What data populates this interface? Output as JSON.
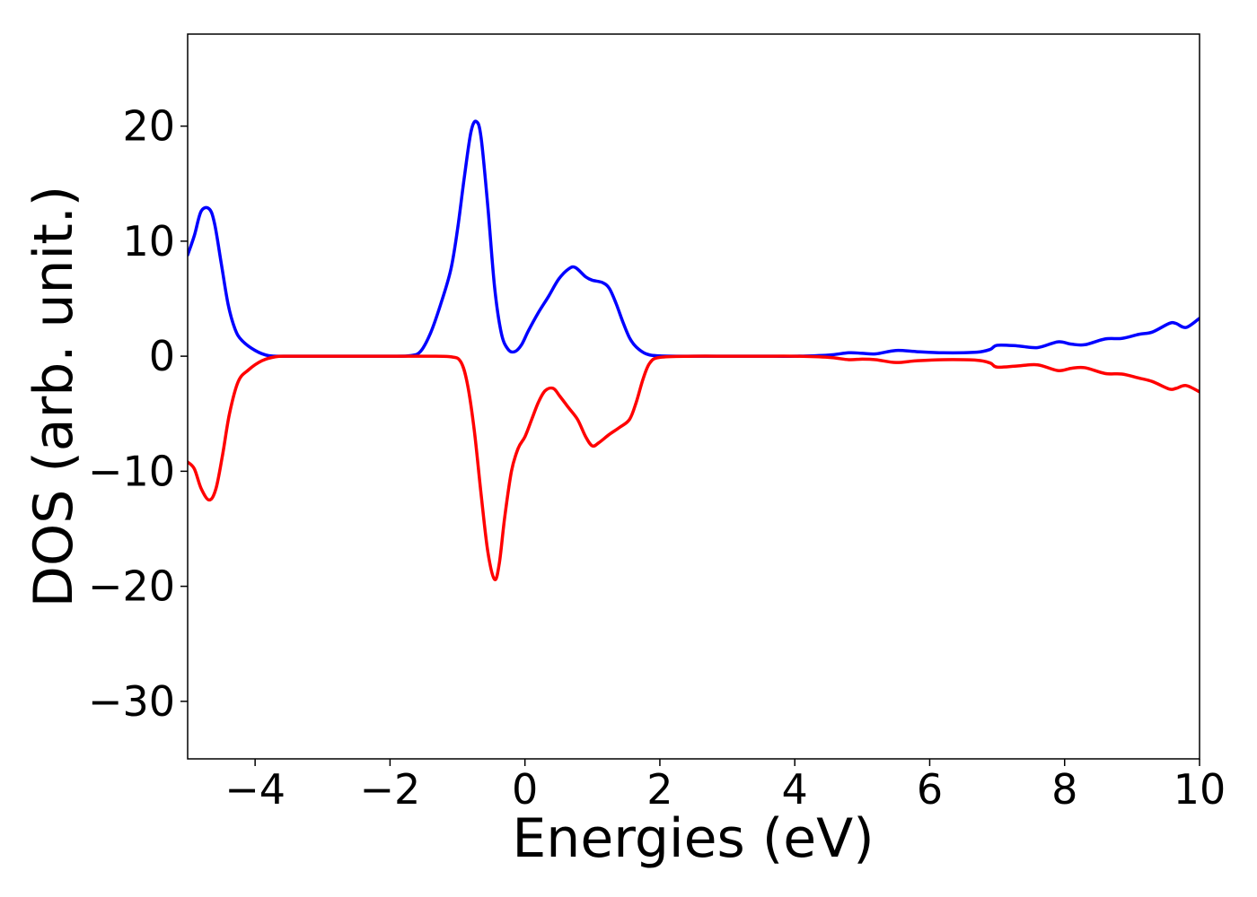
{
  "chart_data": {
    "type": "line",
    "title": "",
    "xlabel": "Energies (eV)",
    "ylabel": "DOS (arb. unit.)",
    "xlim": [
      -5,
      10
    ],
    "ylim": [
      -35,
      28
    ],
    "grid": false,
    "legend": "none",
    "x_ticks": [
      {
        "value": -4,
        "label": "−4"
      },
      {
        "value": -2,
        "label": "−2"
      },
      {
        "value": 0,
        "label": "0"
      },
      {
        "value": 2,
        "label": "2"
      },
      {
        "value": 4,
        "label": "4"
      },
      {
        "value": 6,
        "label": "6"
      },
      {
        "value": 8,
        "label": "8"
      },
      {
        "value": 10,
        "label": "10"
      }
    ],
    "y_ticks": [
      {
        "value": 20,
        "label": "20"
      },
      {
        "value": 10,
        "label": "10"
      },
      {
        "value": 0,
        "label": "0"
      },
      {
        "value": -10,
        "label": "−10"
      },
      {
        "value": -20,
        "label": "−20"
      },
      {
        "value": -30,
        "label": "−30"
      }
    ],
    "series": [
      {
        "color": "#0000ff",
        "points": [
          [
            -5.0,
            8.8
          ],
          [
            -4.9,
            10.5
          ],
          [
            -4.8,
            12.6
          ],
          [
            -4.68,
            12.8
          ],
          [
            -4.6,
            11.5
          ],
          [
            -4.5,
            8.0
          ],
          [
            -4.4,
            4.5
          ],
          [
            -4.3,
            2.4
          ],
          [
            -4.2,
            1.4
          ],
          [
            -4.0,
            0.5
          ],
          [
            -3.8,
            0.05
          ],
          [
            -3.5,
            0.0
          ],
          [
            -3.0,
            0.0
          ],
          [
            -2.5,
            0.0
          ],
          [
            -2.0,
            0.0
          ],
          [
            -1.7,
            0.05
          ],
          [
            -1.55,
            0.4
          ],
          [
            -1.4,
            2.0
          ],
          [
            -1.25,
            4.5
          ],
          [
            -1.1,
            7.5
          ],
          [
            -1.0,
            11.0
          ],
          [
            -0.9,
            15.5
          ],
          [
            -0.8,
            19.5
          ],
          [
            -0.72,
            20.4
          ],
          [
            -0.65,
            19.0
          ],
          [
            -0.55,
            13.0
          ],
          [
            -0.45,
            6.0
          ],
          [
            -0.35,
            2.0
          ],
          [
            -0.25,
            0.6
          ],
          [
            -0.15,
            0.4
          ],
          [
            -0.05,
            1.0
          ],
          [
            0.05,
            2.2
          ],
          [
            0.2,
            3.8
          ],
          [
            0.35,
            5.2
          ],
          [
            0.5,
            6.7
          ],
          [
            0.65,
            7.6
          ],
          [
            0.75,
            7.7
          ],
          [
            0.9,
            6.9
          ],
          [
            1.0,
            6.6
          ],
          [
            1.15,
            6.4
          ],
          [
            1.25,
            5.9
          ],
          [
            1.35,
            4.6
          ],
          [
            1.45,
            3.0
          ],
          [
            1.55,
            1.6
          ],
          [
            1.65,
            0.8
          ],
          [
            1.8,
            0.2
          ],
          [
            2.0,
            0.03
          ],
          [
            2.5,
            0.0
          ],
          [
            3.0,
            0.0
          ],
          [
            3.5,
            0.0
          ],
          [
            4.0,
            0.0
          ],
          [
            4.5,
            0.1
          ],
          [
            4.8,
            0.3
          ],
          [
            5.0,
            0.25
          ],
          [
            5.2,
            0.2
          ],
          [
            5.5,
            0.5
          ],
          [
            5.8,
            0.4
          ],
          [
            6.2,
            0.3
          ],
          [
            6.7,
            0.35
          ],
          [
            6.9,
            0.6
          ],
          [
            7.0,
            0.95
          ],
          [
            7.3,
            0.9
          ],
          [
            7.6,
            0.75
          ],
          [
            7.9,
            1.25
          ],
          [
            8.1,
            1.05
          ],
          [
            8.3,
            1.0
          ],
          [
            8.6,
            1.5
          ],
          [
            8.85,
            1.55
          ],
          [
            9.1,
            1.9
          ],
          [
            9.3,
            2.1
          ],
          [
            9.55,
            2.85
          ],
          [
            9.65,
            2.85
          ],
          [
            9.8,
            2.5
          ],
          [
            10.0,
            3.3
          ]
        ]
      },
      {
        "color": "#ff0000",
        "points": [
          [
            -5.0,
            -9.2
          ],
          [
            -4.9,
            -9.8
          ],
          [
            -4.8,
            -11.5
          ],
          [
            -4.68,
            -12.5
          ],
          [
            -4.58,
            -11.5
          ],
          [
            -4.48,
            -8.5
          ],
          [
            -4.38,
            -5.0
          ],
          [
            -4.25,
            -2.2
          ],
          [
            -4.1,
            -1.2
          ],
          [
            -3.9,
            -0.4
          ],
          [
            -3.7,
            -0.05
          ],
          [
            -3.5,
            0.0
          ],
          [
            -3.0,
            0.0
          ],
          [
            -2.5,
            0.0
          ],
          [
            -2.0,
            0.0
          ],
          [
            -1.5,
            0.0
          ],
          [
            -1.1,
            -0.05
          ],
          [
            -0.95,
            -0.5
          ],
          [
            -0.85,
            -2.5
          ],
          [
            -0.75,
            -6.5
          ],
          [
            -0.65,
            -12.0
          ],
          [
            -0.55,
            -17.0
          ],
          [
            -0.45,
            -19.4
          ],
          [
            -0.38,
            -18.0
          ],
          [
            -0.3,
            -14.0
          ],
          [
            -0.2,
            -10.0
          ],
          [
            -0.1,
            -8.0
          ],
          [
            0.0,
            -7.0
          ],
          [
            0.1,
            -5.5
          ],
          [
            0.2,
            -4.0
          ],
          [
            0.3,
            -3.0
          ],
          [
            0.42,
            -2.8
          ],
          [
            0.52,
            -3.5
          ],
          [
            0.65,
            -4.5
          ],
          [
            0.78,
            -5.5
          ],
          [
            0.9,
            -7.0
          ],
          [
            1.0,
            -7.8
          ],
          [
            1.1,
            -7.5
          ],
          [
            1.25,
            -6.8
          ],
          [
            1.4,
            -6.2
          ],
          [
            1.55,
            -5.5
          ],
          [
            1.65,
            -4.0
          ],
          [
            1.75,
            -2.0
          ],
          [
            1.85,
            -0.6
          ],
          [
            2.0,
            -0.1
          ],
          [
            2.5,
            0.0
          ],
          [
            3.0,
            0.0
          ],
          [
            3.5,
            0.0
          ],
          [
            4.0,
            0.0
          ],
          [
            4.5,
            -0.1
          ],
          [
            4.8,
            -0.3
          ],
          [
            5.0,
            -0.25
          ],
          [
            5.2,
            -0.3
          ],
          [
            5.5,
            -0.55
          ],
          [
            5.8,
            -0.4
          ],
          [
            6.2,
            -0.3
          ],
          [
            6.7,
            -0.35
          ],
          [
            6.9,
            -0.6
          ],
          [
            7.0,
            -0.95
          ],
          [
            7.3,
            -0.85
          ],
          [
            7.6,
            -0.75
          ],
          [
            7.9,
            -1.25
          ],
          [
            8.1,
            -1.05
          ],
          [
            8.3,
            -1.0
          ],
          [
            8.6,
            -1.5
          ],
          [
            8.85,
            -1.55
          ],
          [
            9.1,
            -1.9
          ],
          [
            9.3,
            -2.2
          ],
          [
            9.55,
            -2.85
          ],
          [
            9.65,
            -2.8
          ],
          [
            9.8,
            -2.55
          ],
          [
            10.0,
            -3.1
          ]
        ]
      }
    ]
  }
}
